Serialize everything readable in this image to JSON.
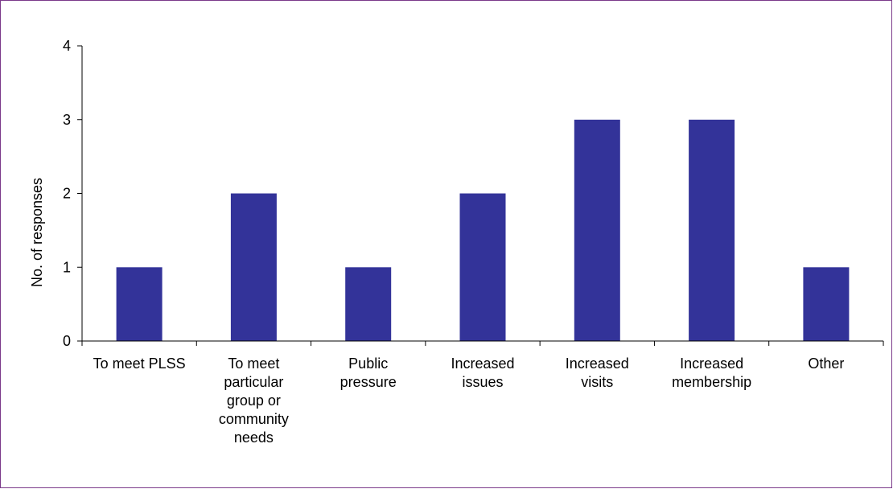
{
  "chart_data": {
    "type": "bar",
    "title": "",
    "xlabel": "",
    "ylabel": "No. of responses",
    "ylim": [
      0,
      4
    ],
    "yticks": [
      "0",
      "1",
      "2",
      "3",
      "4"
    ],
    "grid": false,
    "legend": "none",
    "bar_color": "#333399",
    "categories": [
      [
        "To meet PLSS"
      ],
      [
        "To meet",
        "particular",
        "group or",
        "community",
        "needs"
      ],
      [
        "Public",
        "pressure"
      ],
      [
        "Increased",
        "issues"
      ],
      [
        "Increased",
        "visits"
      ],
      [
        "Increased",
        "membership"
      ],
      [
        "Other"
      ]
    ],
    "values": [
      1,
      2,
      1,
      2,
      3,
      3,
      1
    ]
  },
  "colors": {
    "frame_border": "#7b3a8a",
    "axis": "#000000"
  }
}
